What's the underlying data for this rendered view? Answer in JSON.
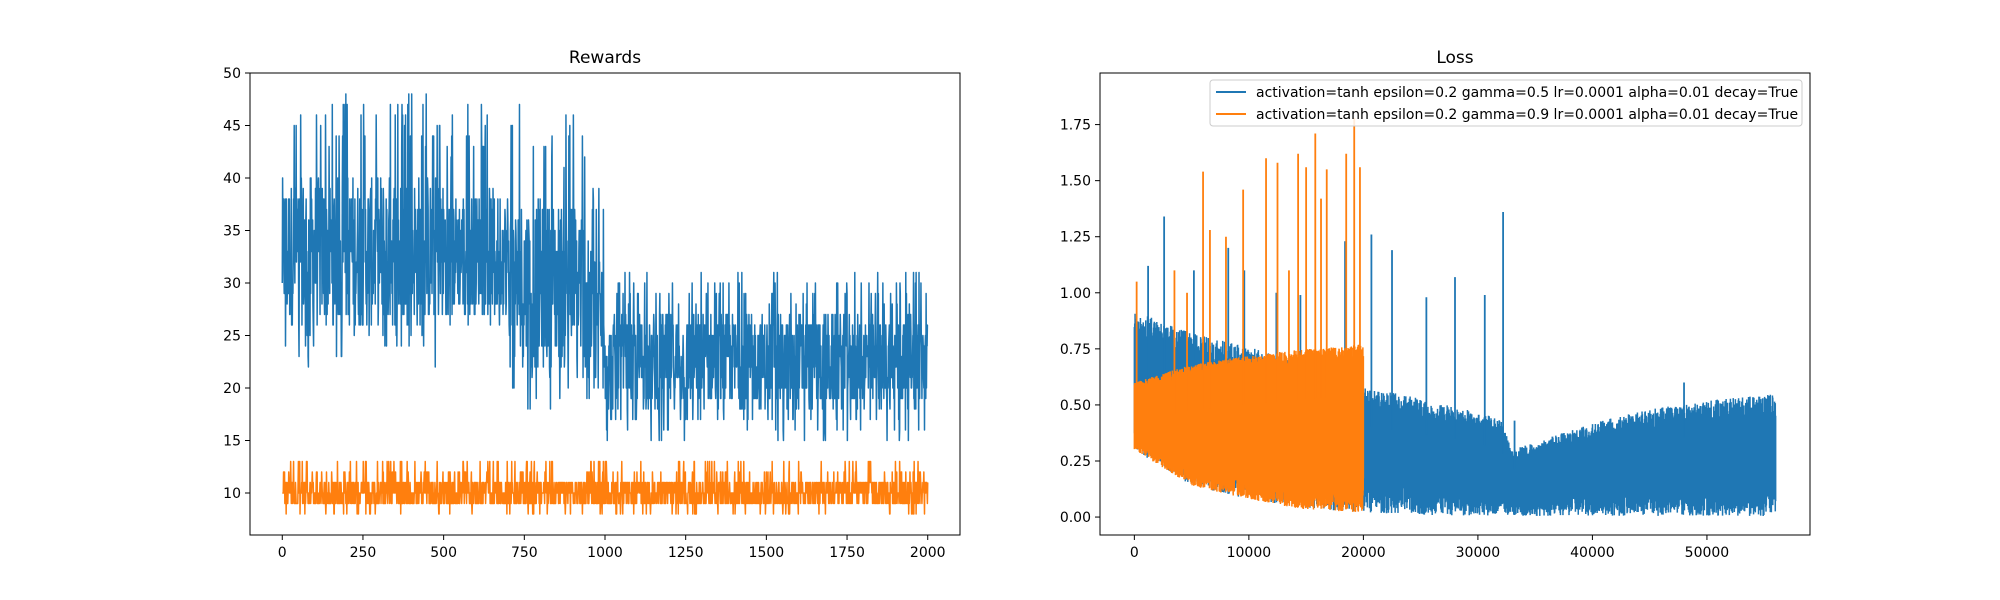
{
  "chart_data": [
    {
      "type": "line",
      "title": "Rewards",
      "xlabel": "",
      "ylabel": "",
      "xlim": [
        -100,
        2100
      ],
      "ylim": [
        6,
        50
      ],
      "xticks": [
        0,
        250,
        500,
        750,
        1000,
        1250,
        1500,
        1750,
        2000
      ],
      "yticks": [
        10,
        15,
        20,
        25,
        30,
        35,
        40,
        45,
        50
      ],
      "x_range": [
        0,
        2000
      ],
      "series": [
        {
          "color": "#1f77b4",
          "segments": [
            {
              "x": [
                0,
                500
              ],
              "mean": 33,
              "min": 22,
              "max": 48
            },
            {
              "x": [
                500,
                700
              ],
              "mean": 33,
              "min": 26,
              "max": 47
            },
            {
              "x": [
                700,
                950
              ],
              "mean": 30,
              "min": 18,
              "max": 47
            },
            {
              "x": [
                950,
                1000
              ],
              "mean": 27,
              "min": 18,
              "max": 40
            },
            {
              "x": [
                1000,
                2000
              ],
              "mean": 22.5,
              "min": 15,
              "max": 31
            }
          ]
        },
        {
          "color": "#ff7f0e",
          "segments": [
            {
              "x": [
                0,
                2000
              ],
              "mean": 10,
              "min": 8,
              "max": 13
            }
          ]
        }
      ]
    },
    {
      "type": "line",
      "title": "Loss",
      "xlabel": "",
      "ylabel": "",
      "xlim": [
        -3000,
        59000
      ],
      "ylim": [
        -0.08,
        1.98
      ],
      "xticks": [
        0,
        10000,
        20000,
        30000,
        40000,
        50000
      ],
      "yticks": [
        0.0,
        0.25,
        0.5,
        0.75,
        1.0,
        1.25,
        1.5,
        1.75
      ],
      "ytick_labels": [
        "0.00",
        "0.25",
        "0.50",
        "0.75",
        "1.00",
        "1.25",
        "1.50",
        "1.75"
      ],
      "legend_position": "upper right",
      "series": [
        {
          "name": "activation=tanh epsilon=0.2 gamma=0.5 lr=0.0001 alpha=0.01 decay=True",
          "color": "#1f77b4",
          "x_range": [
            0,
            56000
          ],
          "band": {
            "x": [
              0,
              5000,
              10000,
              15000,
              20000,
              25000,
              30000,
              32000,
              33000,
              36000,
              40000,
              45000,
              50000,
              56000
            ],
            "low": [
              0.3,
              0.14,
              0.08,
              0.04,
              0.02,
              0.01,
              0.005,
              0.005,
              0.005,
              0.005,
              0.005,
              0.005,
              0.005,
              0.005
            ],
            "high": [
              0.92,
              0.82,
              0.76,
              0.68,
              0.58,
              0.53,
              0.47,
              0.43,
              0.3,
              0.35,
              0.42,
              0.48,
              0.52,
              0.55
            ]
          },
          "spikes": [
            [
              1200,
              1.12
            ],
            [
              2600,
              1.34
            ],
            [
              5200,
              1.1
            ],
            [
              8200,
              1.2
            ],
            [
              9600,
              1.1
            ],
            [
              12400,
              1.0
            ],
            [
              14500,
              0.99
            ],
            [
              18400,
              1.23
            ],
            [
              20700,
              1.26
            ],
            [
              22500,
              1.19
            ],
            [
              25500,
              0.98
            ],
            [
              28000,
              1.07
            ],
            [
              30600,
              0.99
            ],
            [
              32200,
              1.36
            ],
            [
              33200,
              0.43
            ],
            [
              48000,
              0.6
            ]
          ]
        },
        {
          "name": "activation=tanh epsilon=0.2 gamma=0.9 lr=0.0001 alpha=0.01 decay=True",
          "color": "#ff7f0e",
          "x_range": [
            0,
            20000
          ],
          "band": {
            "x": [
              0,
              5000,
              10000,
              15000,
              20000
            ],
            "low": [
              0.3,
              0.14,
              0.08,
              0.03,
              0.02
            ],
            "high": [
              0.6,
              0.68,
              0.72,
              0.75,
              0.77
            ]
          },
          "spikes": [
            [
              200,
              1.05
            ],
            [
              3500,
              1.1
            ],
            [
              4600,
              1.0
            ],
            [
              6000,
              1.54
            ],
            [
              6600,
              1.28
            ],
            [
              8000,
              1.25
            ],
            [
              9500,
              1.46
            ],
            [
              11500,
              1.6
            ],
            [
              12500,
              1.58
            ],
            [
              13500,
              1.1
            ],
            [
              14300,
              1.62
            ],
            [
              15000,
              1.56
            ],
            [
              15800,
              1.71
            ],
            [
              16300,
              1.42
            ],
            [
              16800,
              1.55
            ],
            [
              18500,
              1.62
            ],
            [
              19200,
              1.78
            ],
            [
              19700,
              1.56
            ]
          ]
        }
      ]
    }
  ]
}
